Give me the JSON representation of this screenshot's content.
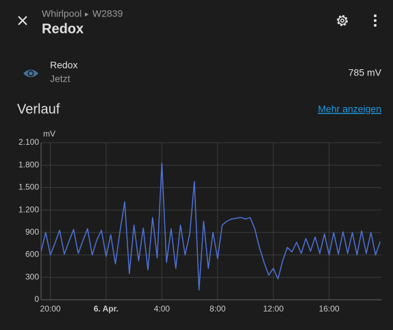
{
  "header": {
    "breadcrumb": [
      "Whirlpool",
      "W2839"
    ],
    "title": "Redox"
  },
  "entity": {
    "name": "Redox",
    "time": "Jetzt",
    "state": "785 mV"
  },
  "history": {
    "title": "Verlauf",
    "link": "Mehr anzeigen"
  },
  "chart_data": {
    "type": "line",
    "y_label": "mV",
    "x": [
      "5. Apr. 19:20",
      "5. Apr. 19:40",
      "5. Apr. 20:00",
      "5. Apr. 20:20",
      "5. Apr. 20:40",
      "5. Apr. 21:00",
      "5. Apr. 21:20",
      "5. Apr. 21:40",
      "5. Apr. 22:00",
      "5. Apr. 22:20",
      "5. Apr. 22:40",
      "5. Apr. 23:00",
      "5. Apr. 23:20",
      "5. Apr. 23:40",
      "6. Apr. 00:00",
      "6. Apr. 00:20",
      "6. Apr. 00:40",
      "6. Apr. 01:00",
      "6. Apr. 01:20",
      "6. Apr. 01:40",
      "6. Apr. 02:00",
      "6. Apr. 02:20",
      "6. Apr. 02:40",
      "6. Apr. 03:00",
      "6. Apr. 03:20",
      "6. Apr. 03:40",
      "6. Apr. 04:00",
      "6. Apr. 04:20",
      "6. Apr. 04:40",
      "6. Apr. 05:00",
      "6. Apr. 05:20",
      "6. Apr. 05:40",
      "6. Apr. 06:00",
      "6. Apr. 06:20",
      "6. Apr. 06:40",
      "6. Apr. 07:00",
      "6. Apr. 07:20",
      "6. Apr. 07:40",
      "6. Apr. 08:00",
      "6. Apr. 08:20",
      "6. Apr. 08:40",
      "6. Apr. 09:00",
      "6. Apr. 09:20",
      "6. Apr. 09:40",
      "6. Apr. 10:00",
      "6. Apr. 10:20",
      "6. Apr. 10:40",
      "6. Apr. 11:00",
      "6. Apr. 11:20",
      "6. Apr. 11:40",
      "6. Apr. 12:00",
      "6. Apr. 12:20",
      "6. Apr. 12:40",
      "6. Apr. 13:00",
      "6. Apr. 13:20",
      "6. Apr. 13:40",
      "6. Apr. 14:00",
      "6. Apr. 14:20",
      "6. Apr. 14:40",
      "6. Apr. 15:00",
      "6. Apr. 15:20",
      "6. Apr. 15:40",
      "6. Apr. 16:00",
      "6. Apr. 16:20",
      "6. Apr. 16:40",
      "6. Apr. 17:00",
      "6. Apr. 17:20",
      "6. Apr. 17:40",
      "6. Apr. 18:00",
      "6. Apr. 18:20",
      "6. Apr. 18:40",
      "6. Apr. 19:00",
      "6. Apr. 19:20",
      "6. Apr. 19:40"
    ],
    "series": [
      {
        "name": "Redox",
        "color": "#4e73d8",
        "values": [
          650,
          900,
          600,
          760,
          930,
          610,
          780,
          940,
          620,
          790,
          950,
          600,
          800,
          930,
          580,
          870,
          480,
          920,
          1310,
          350,
          1000,
          520,
          960,
          400,
          1100,
          560,
          1830,
          500,
          950,
          420,
          1000,
          600,
          880,
          1580,
          130,
          1050,
          420,
          900,
          550,
          1000,
          1050,
          1080,
          1090,
          1100,
          1080,
          1100,
          950,
          700,
          500,
          330,
          420,
          280,
          520,
          700,
          640,
          770,
          620,
          820,
          650,
          840,
          620,
          880,
          600,
          900,
          610,
          910,
          620,
          900,
          600,
          920,
          620,
          900,
          600,
          780
        ]
      }
    ],
    "xlim": [
      "5. Apr. 19:20",
      "6. Apr. 19:45"
    ],
    "xticks": [
      {
        "value": "5. Apr. 20:00",
        "label": "20:00"
      },
      {
        "value": "6. Apr. 00:00",
        "label": "6. Apr."
      },
      {
        "value": "6. Apr. 04:00",
        "label": "4:00"
      },
      {
        "value": "6. Apr. 08:00",
        "label": "8:00"
      },
      {
        "value": "6. Apr. 12:00",
        "label": "12:00"
      },
      {
        "value": "6. Apr. 16:00",
        "label": "16:00"
      }
    ],
    "ylim": [
      0,
      2100
    ],
    "yticks": [
      0,
      300,
      600,
      900,
      {
        "value": 1200,
        "label": "1.200"
      },
      {
        "value": 1500,
        "label": "1.500"
      },
      {
        "value": 1800,
        "label": "1.800"
      },
      {
        "value": 2100,
        "label": "2.100"
      }
    ],
    "grid": true
  }
}
